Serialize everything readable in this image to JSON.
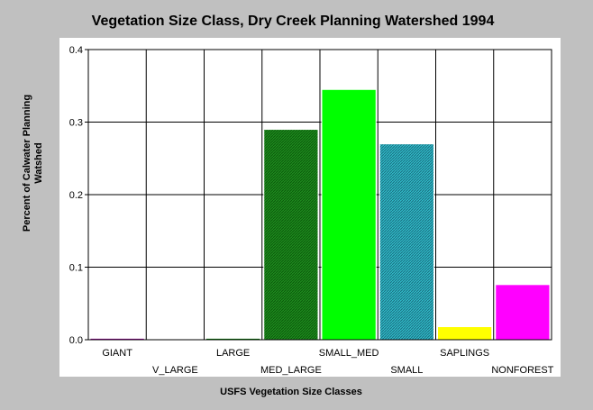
{
  "chart_data": {
    "type": "bar",
    "title": "Vegetation Size Class, Dry Creek Planning Watershed 1994",
    "xlabel": "USFS Vegetation Size Classes",
    "ylabel": [
      "Percent of Calwater Planning",
      "Watshed"
    ],
    "ylim": [
      0,
      0.4
    ],
    "yticks": [
      "0.0",
      "0.1",
      "0.2",
      "0.3",
      "0.4"
    ],
    "grid": true,
    "categories": [
      "GIANT",
      "V_LARGE",
      "LARGE",
      "MED_LARGE",
      "SMALL_MED",
      "SMALL",
      "SAPLINGS",
      "NONFOREST"
    ],
    "values": [
      0.002,
      0.0,
      0.002,
      0.29,
      0.345,
      0.27,
      0.018,
      0.076
    ],
    "colors": [
      "#a000a0",
      "#808080",
      "#008000",
      "#228b22",
      "#00ff00",
      "#2aa3b0",
      "#ffff00",
      "#ff00ff"
    ],
    "patterns": [
      "solid",
      "solid",
      "solid",
      "hatch",
      "solid",
      "hatch",
      "solid",
      "solid"
    ]
  }
}
